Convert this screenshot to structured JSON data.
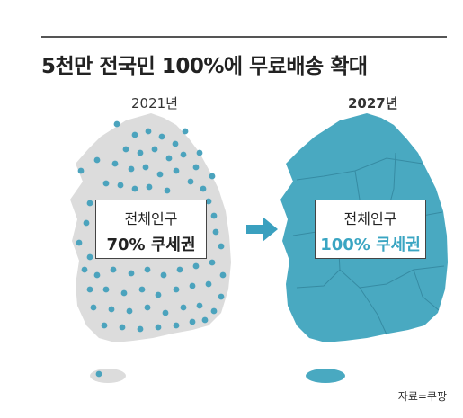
{
  "headline": "5천만 전국민 100%에 무료배송 확대",
  "panels": [
    {
      "year": "2021년",
      "label_line1": "전체인구",
      "label_line2": "70% 쿠세권",
      "coverage_percent": 70
    },
    {
      "year": "2027년",
      "label_line1": "전체인구",
      "label_line2": "100% 쿠세권",
      "coverage_percent": 100
    }
  ],
  "source": "자료=쿠팡",
  "colors": {
    "land_gray": "#dcdcdc",
    "coverage_teal": "#49a9c1",
    "dot_teal": "#4ba3bd",
    "arrow_teal": "#3aa0bf",
    "highlight_text": "#3aa5c2"
  }
}
